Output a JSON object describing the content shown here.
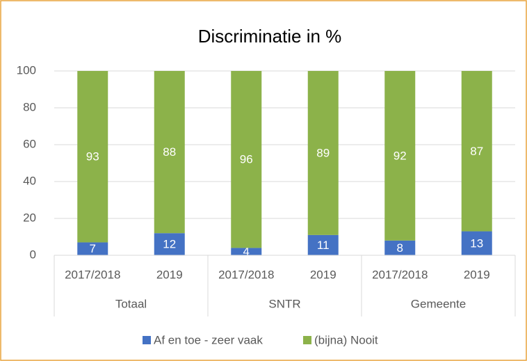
{
  "chart_data": {
    "type": "stacked_bar",
    "title": "Discriminatie in %",
    "groups": [
      {
        "name": "Totaal",
        "categories": [
          "2017/2018",
          "2019"
        ]
      },
      {
        "name": "SNTR",
        "categories": [
          "2017/2018",
          "2019"
        ]
      },
      {
        "name": "Gemeente",
        "categories": [
          "2017/2018",
          "2019"
        ]
      }
    ],
    "series": [
      {
        "name": "Af en toe - zeer vaak",
        "color": "#4472c4",
        "values": [
          7,
          12,
          4,
          11,
          8,
          13
        ]
      },
      {
        "name": "(bijna) Nooit",
        "color": "#8cb24a",
        "values": [
          93,
          88,
          96,
          89,
          92,
          87
        ]
      }
    ],
    "ylim": [
      0,
      100
    ],
    "yticks": [
      0,
      20,
      40,
      60,
      80,
      100
    ],
    "grid": true,
    "legend": "bottom"
  }
}
